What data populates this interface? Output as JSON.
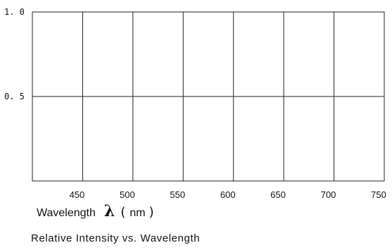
{
  "chart_data": {
    "type": "line",
    "title": "",
    "caption": "Relative  Intensity  vs.  Wavelength",
    "xlabel": {
      "text": "Wavelength",
      "symbol": "λ",
      "paren_open": "(",
      "unit": "nm",
      "paren_close": ")"
    },
    "ylabel": "",
    "xlim": [
      400,
      750
    ],
    "ylim": [
      0,
      1.0
    ],
    "x_ticks": [
      450,
      500,
      550,
      600,
      650,
      700,
      750
    ],
    "x_tick_labels": [
      "450",
      "500",
      "550",
      "600",
      "650",
      "700",
      "750"
    ],
    "y_ticks": [
      1.0,
      0.5
    ],
    "y_tick_labels": [
      "1. 0",
      "0. 5"
    ],
    "grid": true,
    "series": []
  }
}
